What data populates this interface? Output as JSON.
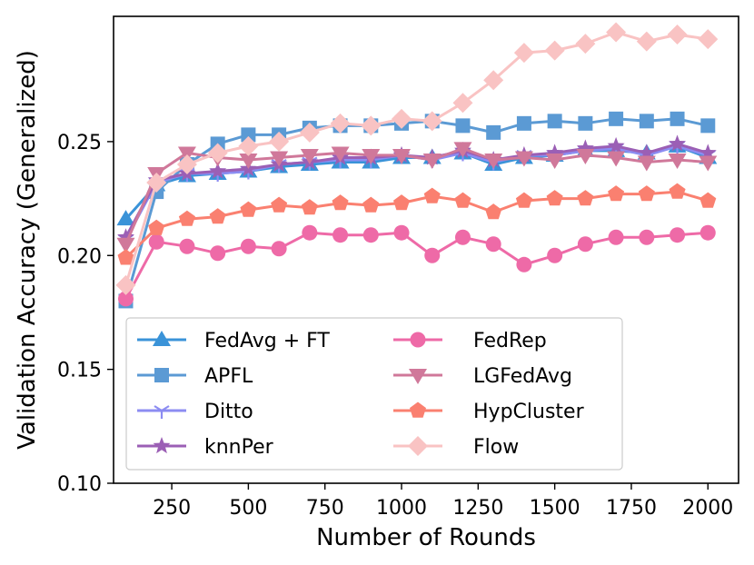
{
  "chart_data": {
    "type": "line",
    "xlabel": "Number of Rounds",
    "ylabel": "Validation Accuracy (Generalized)",
    "xlim": [
      60,
      2100
    ],
    "ylim": [
      0.1,
      0.305
    ],
    "xticks": [
      250,
      500,
      750,
      1000,
      1250,
      1500,
      1750,
      2000
    ],
    "yticks": [
      0.1,
      0.15,
      0.2,
      0.25
    ],
    "xtick_labels": [
      "250",
      "500",
      "750",
      "1000",
      "1250",
      "1500",
      "1750",
      "2000"
    ],
    "ytick_labels": [
      "0.10",
      "0.15",
      "0.20",
      "0.25"
    ],
    "legend_position": "lower-left",
    "x": [
      100,
      200,
      300,
      400,
      500,
      600,
      700,
      800,
      900,
      1000,
      1100,
      1200,
      1300,
      1400,
      1500,
      1600,
      1700,
      1800,
      1900,
      2000
    ],
    "series": [
      {
        "name": "FedAvg + FT",
        "color": "#3a93d8",
        "marker": "triangle-up",
        "values": [
          0.216,
          0.231,
          0.235,
          0.236,
          0.237,
          0.239,
          0.24,
          0.241,
          0.241,
          0.243,
          0.243,
          0.245,
          0.24,
          0.243,
          0.244,
          0.246,
          0.246,
          0.245,
          0.248,
          0.243
        ]
      },
      {
        "name": "APFL",
        "color": "#5b9ad4",
        "marker": "square",
        "values": [
          0.18,
          0.228,
          0.24,
          0.249,
          0.253,
          0.253,
          0.256,
          0.257,
          0.257,
          0.258,
          0.259,
          0.257,
          0.254,
          0.258,
          0.259,
          0.258,
          0.26,
          0.259,
          0.26,
          0.257
        ]
      },
      {
        "name": "Ditto",
        "color": "#8c8cf2",
        "marker": "tri-down",
        "values": [
          0.207,
          0.232,
          0.236,
          0.236,
          0.237,
          0.24,
          0.241,
          0.242,
          0.242,
          0.244,
          0.242,
          0.245,
          0.241,
          0.244,
          0.244,
          0.246,
          0.247,
          0.244,
          0.248,
          0.244
        ]
      },
      {
        "name": "knnPer",
        "color": "#9b5fb5",
        "marker": "star",
        "values": [
          0.208,
          0.233,
          0.236,
          0.237,
          0.238,
          0.24,
          0.241,
          0.243,
          0.243,
          0.244,
          0.243,
          0.246,
          0.242,
          0.244,
          0.245,
          0.247,
          0.248,
          0.245,
          0.249,
          0.245
        ]
      },
      {
        "name": "FedRep",
        "color": "#ee6aa7",
        "marker": "circle",
        "values": [
          0.181,
          0.206,
          0.204,
          0.201,
          0.204,
          0.203,
          0.21,
          0.209,
          0.209,
          0.21,
          0.2,
          0.208,
          0.205,
          0.196,
          0.2,
          0.205,
          0.208,
          0.208,
          0.209,
          0.21
        ]
      },
      {
        "name": "LGFedAvg",
        "color": "#d0789a",
        "marker": "triangle-down",
        "values": [
          0.205,
          0.236,
          0.245,
          0.243,
          0.242,
          0.243,
          0.244,
          0.245,
          0.244,
          0.244,
          0.242,
          0.247,
          0.242,
          0.243,
          0.242,
          0.244,
          0.243,
          0.241,
          0.242,
          0.241
        ]
      },
      {
        "name": "HypCluster",
        "color": "#fa8070",
        "marker": "pentagon",
        "values": [
          0.199,
          0.212,
          0.216,
          0.217,
          0.22,
          0.222,
          0.221,
          0.223,
          0.222,
          0.223,
          0.226,
          0.224,
          0.219,
          0.224,
          0.225,
          0.225,
          0.227,
          0.227,
          0.228,
          0.224
        ]
      },
      {
        "name": "Flow",
        "color": "#f9c3c3",
        "marker": "diamond",
        "values": [
          0.187,
          0.232,
          0.24,
          0.245,
          0.248,
          0.25,
          0.254,
          0.258,
          0.257,
          0.26,
          0.259,
          0.267,
          0.277,
          0.289,
          0.29,
          0.293,
          0.298,
          0.294,
          0.297,
          0.295
        ]
      }
    ]
  }
}
